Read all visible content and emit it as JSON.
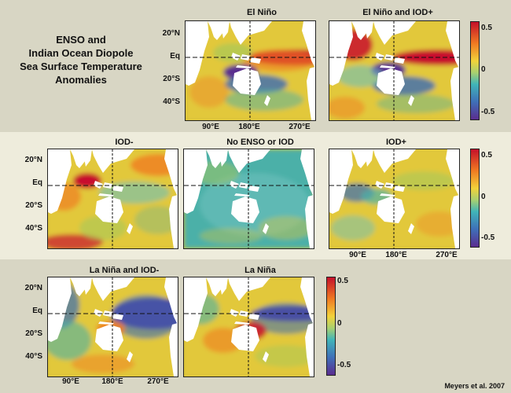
{
  "title_lines": [
    "ENSO and",
    "Indian Ocean Diopole",
    "Sea Surface Temperature",
    "Anomalies"
  ],
  "axes": {
    "lat_labels": [
      "20°N",
      "Eq",
      "20°S",
      "40°S"
    ],
    "lon_labels": [
      "90°E",
      "180°E",
      "270°E"
    ]
  },
  "colorbar": {
    "ticks": [
      "0.5",
      "0",
      "-0.5"
    ],
    "range": [
      -0.6,
      0.6
    ]
  },
  "panels": [
    {
      "id": "el-nino",
      "title": "El Niño",
      "pattern": "el_nino"
    },
    {
      "id": "el-nino-iod-plus",
      "title": "El Niño and IOD+",
      "pattern": "el_nino_iod"
    },
    {
      "id": "iod-minus",
      "title": "IOD-",
      "pattern": "iod_minus"
    },
    {
      "id": "no-enso-iod",
      "title": "No ENSO or IOD",
      "pattern": "neutral"
    },
    {
      "id": "iod-plus",
      "title": "IOD+",
      "pattern": "iod_plus"
    },
    {
      "id": "la-nina-iod-minus",
      "title": "La Niña and IOD-",
      "pattern": "la_nina_iod"
    },
    {
      "id": "la-nina",
      "title": "La Niña",
      "pattern": "la_nina"
    }
  ],
  "credit": "Meyers et al. 2007"
}
